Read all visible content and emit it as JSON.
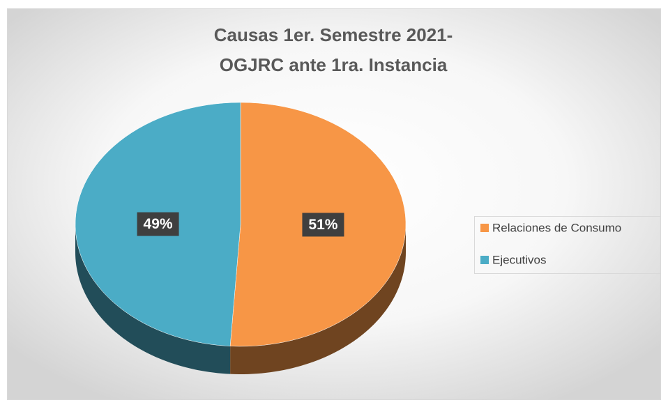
{
  "chart_data": {
    "type": "pie",
    "title": [
      "Causas 1er. Semestre 2021-",
      "OGJRC ante 1ra. Instancia"
    ],
    "categories": [
      "Relaciones de Consumo",
      "Ejecutivos"
    ],
    "values": [
      51,
      49
    ],
    "value_labels": [
      "51%",
      "49%"
    ],
    "colors": [
      "#F79646",
      "#4BACC6"
    ],
    "legend": "right"
  }
}
